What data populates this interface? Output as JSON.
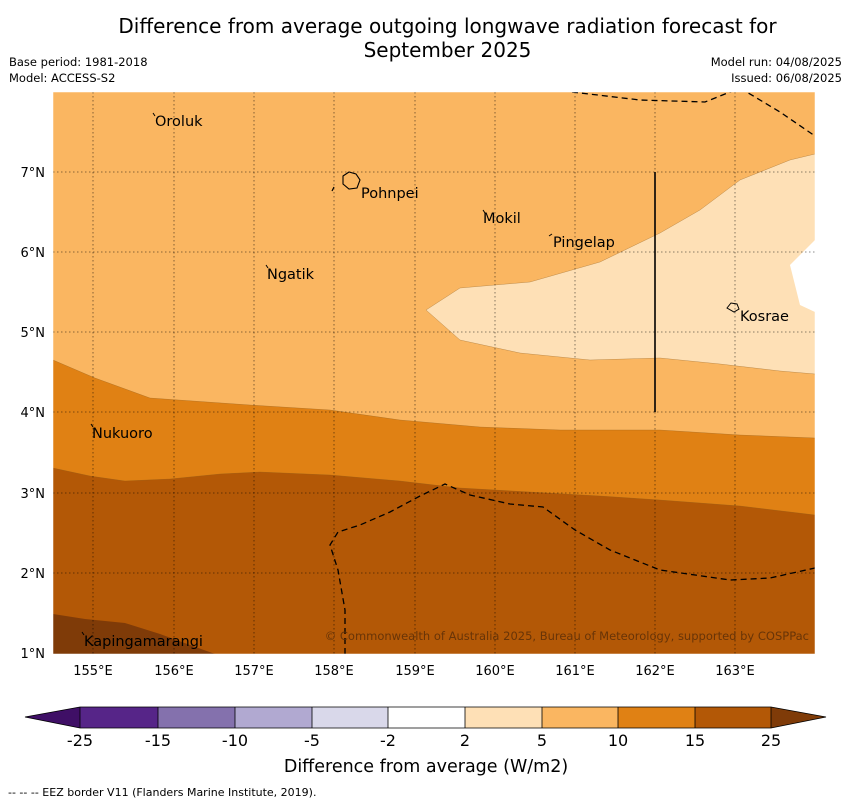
{
  "title": {
    "line1": "Difference from average outgoing longwave radiation forecast for",
    "line2": "September 2025"
  },
  "meta": {
    "base_period": "Base period: 1981-2018",
    "model": "Model: ACCESS-S2",
    "model_run": "Model run: 04/08/2025",
    "issued": "Issued: 06/08/2025"
  },
  "map": {
    "lon_labels": [
      "155°E",
      "156°E",
      "157°E",
      "158°E",
      "159°E",
      "160°E",
      "161°E",
      "162°E",
      "163°E"
    ],
    "lat_labels": [
      "7°N",
      "6°N",
      "5°N",
      "4°N",
      "3°N",
      "2°N",
      "1°N"
    ],
    "places": {
      "oroluk": "Oroluk",
      "pohnpei": "Pohnpei",
      "mokil": "Mokil",
      "pingelap": "Pingelap",
      "ngatik": "Ngatik",
      "kosrae": "Kosrae",
      "nukuoro": "Nukuoro",
      "kapingamarangi": "Kapingamarangi"
    },
    "copyright": "© Commonwealth of Australia 2025, Bureau of Meteorology, supported by COSPPac"
  },
  "colorbar": {
    "ticks": [
      "-25",
      "-15",
      "-10",
      "-5",
      "-2",
      "2",
      "5",
      "10",
      "15",
      "25"
    ],
    "colors": [
      "#3f0f66",
      "#562588",
      "#8471ad",
      "#b1a9d1",
      "#d9d8ea",
      "#ffffff",
      "#fee0b6",
      "#fab661",
      "#e08114",
      "#b35806",
      "#7f3b08"
    ],
    "label": "Difference from average (W/m2)"
  },
  "footnote": "--  --  -- EEZ border V11 (Flanders Marine Institute, 2019)."
}
